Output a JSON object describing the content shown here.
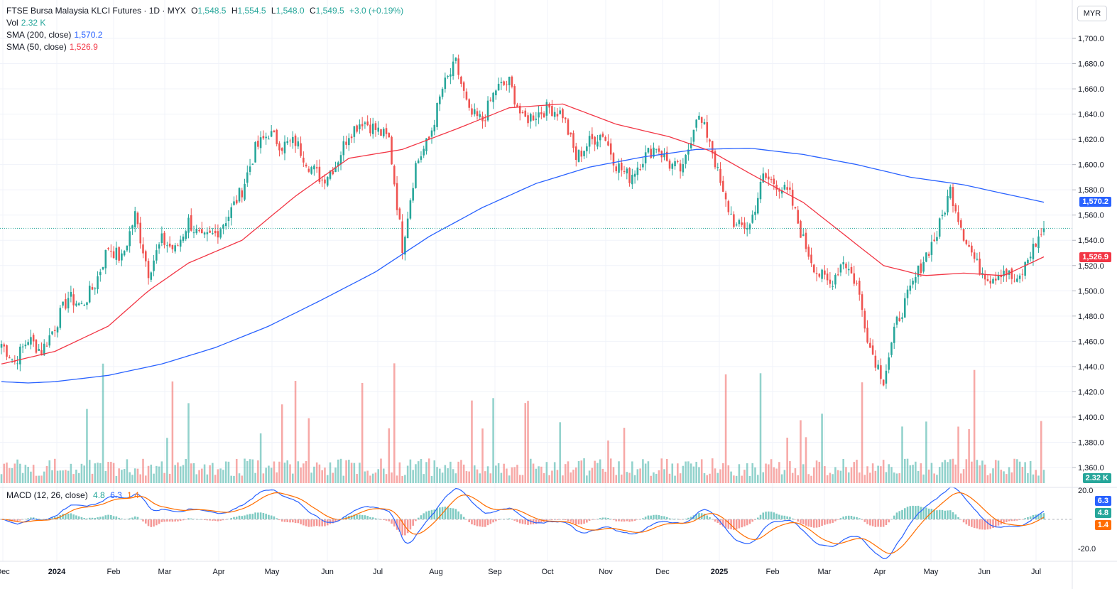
{
  "header": {
    "symbol": "FTSE Bursa Malaysia KLCI Futures · 1D · MYX",
    "o_label": "O",
    "o": "1,548.5",
    "h_label": "H",
    "h": "1,554.5",
    "l_label": "L",
    "l": "1,548.0",
    "c_label": "C",
    "c": "1,549.5",
    "change": "+3.0 (+0.19%)",
    "vol_label": "Vol",
    "vol": "2.32 K",
    "sma200_label": "SMA (200, close)",
    "sma200": "1,570.2",
    "sma50_label": "SMA (50, close)",
    "sma50": "1,526.9",
    "macd_label": "MACD (12, 26, close)",
    "macd_hist": "4.8",
    "macd_line": "6.3",
    "macd_signal": "1.4"
  },
  "currency_button": "MYR",
  "badges": {
    "sma200": "1,570.2",
    "sma50": "1,526.9",
    "volume": "2.32 K",
    "macd_line": "6.3",
    "macd_hist": "4.8",
    "macd_signal": "1.4"
  },
  "colors": {
    "up": "#26a69a",
    "down": "#ef5350",
    "sma200": "#2962ff",
    "sma50": "#f23645",
    "macd": "#2962ff",
    "signal": "#ff6d00"
  },
  "chart_data": {
    "type": "candlestick",
    "price_axis": {
      "ticks": [
        "1,700.0",
        "1,680.0",
        "1,660.0",
        "1,640.0",
        "1,620.0",
        "1,600.0",
        "1,580.0",
        "1,560.0",
        "1,540.0",
        "1,520.0",
        "1,500.0",
        "1,480.0",
        "1,460.0",
        "1,440.0",
        "1,420.0",
        "1,400.0",
        "1,380.0",
        "1,360.0"
      ],
      "range": [
        1357,
        1710
      ]
    },
    "macd_axis": {
      "ticks": [
        "20.0",
        "-20.0"
      ],
      "range": [
        -28,
        24
      ]
    },
    "x_labels": [
      "Dec",
      "2024",
      "Feb",
      "Mar",
      "Apr",
      "May",
      "Jun",
      "Jul",
      "Aug",
      "Sep",
      "Oct",
      "Nov",
      "Dec",
      "2025",
      "Feb",
      "Mar",
      "Apr",
      "May",
      "Jun",
      "Jul"
    ],
    "last_close": 1549.5,
    "close_anchors": [
      [
        0,
        1458
      ],
      [
        5,
        1444
      ],
      [
        10,
        1462
      ],
      [
        15,
        1452
      ],
      [
        20,
        1472
      ],
      [
        25,
        1495
      ],
      [
        30,
        1488
      ],
      [
        35,
        1505
      ],
      [
        40,
        1535
      ],
      [
        45,
        1525
      ],
      [
        50,
        1560
      ],
      [
        55,
        1515
      ],
      [
        60,
        1540
      ],
      [
        65,
        1532
      ],
      [
        70,
        1555
      ],
      [
        75,
        1540
      ],
      [
        80,
        1545
      ],
      [
        85,
        1560
      ],
      [
        90,
        1580
      ],
      [
        95,
        1612
      ],
      [
        100,
        1625
      ],
      [
        105,
        1615
      ],
      [
        110,
        1618
      ],
      [
        115,
        1600
      ],
      [
        120,
        1588
      ],
      [
        125,
        1600
      ],
      [
        130,
        1625
      ],
      [
        135,
        1635
      ],
      [
        140,
        1628
      ],
      [
        145,
        1620
      ],
      [
        150,
        1535
      ],
      [
        155,
        1600
      ],
      [
        160,
        1620
      ],
      [
        165,
        1660
      ],
      [
        170,
        1680
      ],
      [
        175,
        1640
      ],
      [
        180,
        1635
      ],
      [
        185,
        1660
      ],
      [
        190,
        1665
      ],
      [
        195,
        1635
      ],
      [
        200,
        1640
      ],
      [
        205,
        1645
      ],
      [
        210,
        1640
      ],
      [
        215,
        1605
      ],
      [
        220,
        1618
      ],
      [
        225,
        1625
      ],
      [
        230,
        1600
      ],
      [
        235,
        1590
      ],
      [
        240,
        1605
      ],
      [
        245,
        1615
      ],
      [
        250,
        1600
      ],
      [
        255,
        1595
      ],
      [
        260,
        1640
      ],
      [
        265,
        1620
      ],
      [
        270,
        1575
      ],
      [
        275,
        1550
      ],
      [
        280,
        1552
      ],
      [
        285,
        1590
      ],
      [
        290,
        1585
      ],
      [
        295,
        1575
      ],
      [
        300,
        1540
      ],
      [
        305,
        1515
      ],
      [
        310,
        1505
      ],
      [
        315,
        1525
      ],
      [
        320,
        1505
      ],
      [
        325,
        1455
      ],
      [
        330,
        1430
      ],
      [
        335,
        1475
      ],
      [
        340,
        1500
      ],
      [
        345,
        1525
      ],
      [
        350,
        1545
      ],
      [
        355,
        1580
      ],
      [
        360,
        1545
      ],
      [
        365,
        1520
      ],
      [
        370,
        1510
      ],
      [
        375,
        1517
      ],
      [
        380,
        1505
      ],
      [
        385,
        1530
      ],
      [
        390,
        1549.5
      ]
    ],
    "sma200_anchors": [
      [
        0,
        1428
      ],
      [
        10,
        1427
      ],
      [
        20,
        1428
      ],
      [
        40,
        1433
      ],
      [
        60,
        1442
      ],
      [
        80,
        1455
      ],
      [
        100,
        1472
      ],
      [
        120,
        1493
      ],
      [
        140,
        1515
      ],
      [
        160,
        1543
      ],
      [
        180,
        1566
      ],
      [
        200,
        1585
      ],
      [
        220,
        1598
      ],
      [
        240,
        1606
      ],
      [
        260,
        1612
      ],
      [
        280,
        1613
      ],
      [
        300,
        1608
      ],
      [
        320,
        1600
      ],
      [
        340,
        1590
      ],
      [
        360,
        1584
      ],
      [
        375,
        1577
      ],
      [
        390,
        1570.2
      ]
    ],
    "sma50_anchors": [
      [
        0,
        1442
      ],
      [
        20,
        1452
      ],
      [
        40,
        1472
      ],
      [
        55,
        1500
      ],
      [
        70,
        1522
      ],
      [
        90,
        1540
      ],
      [
        110,
        1575
      ],
      [
        130,
        1605
      ],
      [
        150,
        1612
      ],
      [
        170,
        1628
      ],
      [
        190,
        1645
      ],
      [
        210,
        1648
      ],
      [
        230,
        1632
      ],
      [
        250,
        1622
      ],
      [
        265,
        1611
      ],
      [
        280,
        1593
      ],
      [
        300,
        1570
      ],
      [
        315,
        1545
      ],
      [
        330,
        1520
      ],
      [
        345,
        1512
      ],
      [
        360,
        1514
      ],
      [
        375,
        1512
      ],
      [
        390,
        1526.9
      ]
    ],
    "volume_series": "per-bar volume bars scaled to pane, latest 2.32 K"
  }
}
